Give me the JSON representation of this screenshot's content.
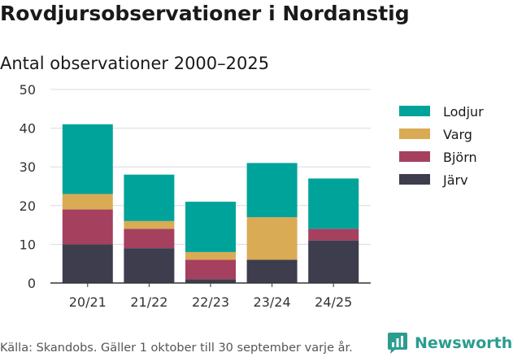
{
  "title": "Rovdjursobservationer i Nordanstig",
  "source": "Källa: Skandobs. Gäller 1 oktober till 30 september varje år.",
  "brand": {
    "name": "Newsworthy",
    "icon": "newsworthy-logo-icon",
    "color": "#2a9d8f"
  },
  "chart_data": {
    "type": "bar",
    "stacked": true,
    "title": "Antal observationer 2000–2025",
    "xlabel": "",
    "ylabel": "",
    "ylim": [
      0,
      50
    ],
    "yticks": [
      0,
      10,
      20,
      30,
      40,
      50
    ],
    "grid": true,
    "legend_position": "right",
    "categories": [
      "20/21",
      "21/22",
      "22/23",
      "23/24",
      "24/25"
    ],
    "series": [
      {
        "name": "Järv",
        "color": "#3d3d4e",
        "values": [
          10,
          9,
          1,
          6,
          11
        ]
      },
      {
        "name": "Björn",
        "color": "#a6405f",
        "values": [
          9,
          5,
          5,
          0,
          3
        ]
      },
      {
        "name": "Varg",
        "color": "#d9ab55",
        "values": [
          4,
          2,
          2,
          11,
          0
        ]
      },
      {
        "name": "Lodjur",
        "color": "#00a399",
        "values": [
          18,
          12,
          13,
          14,
          13
        ]
      }
    ],
    "legend_order": [
      "Lodjur",
      "Varg",
      "Björn",
      "Järv"
    ]
  }
}
